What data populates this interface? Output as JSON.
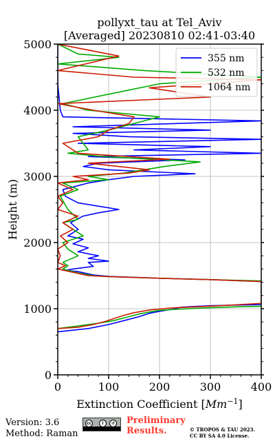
{
  "chart_data": {
    "type": "line",
    "title": "pollyxt_tau at Tel_Aviv",
    "subtitle": "[Averaged] 20230810 02:41-03:40",
    "xlabel": "Extinction Coefficient [Mm⁻¹]",
    "ylabel": "Height (m)",
    "xlim": [
      0,
      400
    ],
    "ylim": [
      0,
      5000
    ],
    "xticks": [
      0,
      100,
      200,
      300,
      400
    ],
    "yticks": [
      0,
      1000,
      2000,
      3000,
      4000,
      5000
    ],
    "grid": true,
    "legend_position": "top-right",
    "series": [
      {
        "name": "355 nm",
        "color": "#0000ff",
        "points": [
          [
            0,
            650
          ],
          [
            60,
            700
          ],
          [
            100,
            760
          ],
          [
            130,
            820
          ],
          [
            160,
            880
          ],
          [
            180,
            930
          ],
          [
            200,
            960
          ],
          [
            215,
            980
          ],
          [
            225,
            990
          ],
          [
            232,
            1000
          ],
          [
            240,
            1020
          ],
          [
            260,
            1030
          ],
          [
            300,
            1045
          ],
          [
            350,
            1055
          ],
          [
            400,
            1060
          ],
          [
            400,
            1410
          ],
          [
            300,
            1440
          ],
          [
            200,
            1460
          ],
          [
            100,
            1490
          ],
          [
            70,
            1510
          ],
          [
            40,
            1560
          ],
          [
            15,
            1580
          ],
          [
            30,
            1600
          ],
          [
            70,
            1640
          ],
          [
            60,
            1700
          ],
          [
            100,
            1720
          ],
          [
            60,
            1760
          ],
          [
            80,
            1800
          ],
          [
            40,
            1860
          ],
          [
            60,
            1920
          ],
          [
            30,
            1980
          ],
          [
            50,
            2050
          ],
          [
            20,
            2100
          ],
          [
            40,
            2200
          ],
          [
            25,
            2300
          ],
          [
            50,
            2400
          ],
          [
            80,
            2450
          ],
          [
            120,
            2500
          ],
          [
            80,
            2550
          ],
          [
            40,
            2600
          ],
          [
            15,
            2700
          ],
          [
            10,
            2800
          ],
          [
            60,
            2900
          ],
          [
            100,
            2950
          ],
          [
            150,
            3000
          ],
          [
            270,
            3040
          ],
          [
            100,
            3100
          ],
          [
            50,
            3150
          ],
          [
            80,
            3200
          ],
          [
            250,
            3250
          ],
          [
            60,
            3300
          ],
          [
            400,
            3350
          ],
          [
            150,
            3400
          ],
          [
            300,
            3450
          ],
          [
            40,
            3500
          ],
          [
            400,
            3560
          ],
          [
            140,
            3600
          ],
          [
            30,
            3650
          ],
          [
            300,
            3700
          ],
          [
            30,
            3750
          ],
          [
            400,
            3840
          ],
          [
            10,
            3900
          ],
          [
            5,
            4000
          ],
          [
            0,
            4400
          ],
          [
            0,
            5000
          ]
        ]
      },
      {
        "name": "532 nm",
        "color": "#00aa00",
        "points": [
          [
            0,
            700
          ],
          [
            40,
            740
          ],
          [
            80,
            780
          ],
          [
            110,
            820
          ],
          [
            140,
            880
          ],
          [
            160,
            920
          ],
          [
            180,
            950
          ],
          [
            200,
            975
          ],
          [
            230,
            990
          ],
          [
            270,
            1005
          ],
          [
            320,
            1020
          ],
          [
            360,
            1030
          ],
          [
            400,
            1035
          ],
          [
            400,
            1420
          ],
          [
            300,
            1440
          ],
          [
            200,
            1460
          ],
          [
            100,
            1485
          ],
          [
            70,
            1500
          ],
          [
            40,
            1540
          ],
          [
            10,
            1600
          ],
          [
            20,
            1650
          ],
          [
            10,
            1700
          ],
          [
            40,
            1800
          ],
          [
            20,
            1900
          ],
          [
            10,
            2000
          ],
          [
            50,
            2100
          ],
          [
            30,
            2200
          ],
          [
            10,
            2300
          ],
          [
            40,
            2350
          ],
          [
            20,
            2500
          ],
          [
            5,
            2700
          ],
          [
            40,
            2800
          ],
          [
            10,
            2900
          ],
          [
            100,
            2950
          ],
          [
            60,
            3000
          ],
          [
            130,
            3050
          ],
          [
            210,
            3150
          ],
          [
            280,
            3220
          ],
          [
            90,
            3300
          ],
          [
            20,
            3350
          ],
          [
            60,
            3400
          ],
          [
            40,
            3600
          ],
          [
            100,
            3700
          ],
          [
            200,
            3900
          ],
          [
            60,
            4000
          ],
          [
            10,
            4100
          ],
          [
            200,
            4400
          ],
          [
            400,
            4500
          ],
          [
            170,
            4600
          ],
          [
            0,
            4700
          ],
          [
            120,
            4800
          ],
          [
            40,
            4850
          ],
          [
            0,
            5000
          ]
        ]
      },
      {
        "name": "1064 nm",
        "color": "#cc1a00",
        "points": [
          [
            0,
            700
          ],
          [
            40,
            720
          ],
          [
            70,
            760
          ],
          [
            90,
            800
          ],
          [
            110,
            850
          ],
          [
            130,
            900
          ],
          [
            150,
            940
          ],
          [
            180,
            980
          ],
          [
            220,
            1010
          ],
          [
            280,
            1030
          ],
          [
            330,
            1050
          ],
          [
            400,
            1080
          ],
          [
            400,
            1410
          ],
          [
            300,
            1440
          ],
          [
            200,
            1460
          ],
          [
            100,
            1485
          ],
          [
            60,
            1500
          ],
          [
            30,
            1550
          ],
          [
            0,
            1600
          ],
          [
            15,
            1650
          ],
          [
            0,
            1700
          ],
          [
            5,
            1800
          ],
          [
            0,
            1900
          ],
          [
            20,
            2000
          ],
          [
            5,
            2100
          ],
          [
            30,
            2200
          ],
          [
            10,
            2300
          ],
          [
            40,
            2400
          ],
          [
            0,
            2500
          ],
          [
            10,
            2600
          ],
          [
            0,
            2700
          ],
          [
            30,
            2800
          ],
          [
            0,
            2900
          ],
          [
            60,
            2950
          ],
          [
            30,
            3000
          ],
          [
            140,
            3050
          ],
          [
            180,
            3100
          ],
          [
            60,
            3200
          ],
          [
            220,
            3260
          ],
          [
            40,
            3350
          ],
          [
            10,
            3500
          ],
          [
            80,
            3600
          ],
          [
            100,
            3700
          ],
          [
            140,
            3800
          ],
          [
            150,
            3900
          ],
          [
            70,
            4000
          ],
          [
            0,
            4100
          ],
          [
            300,
            4200
          ],
          [
            180,
            4340
          ],
          [
            400,
            4460
          ],
          [
            150,
            4500
          ],
          [
            0,
            4600
          ],
          [
            120,
            4820
          ],
          [
            0,
            5000
          ]
        ]
      }
    ]
  },
  "footer": {
    "version": "Version: 3.6",
    "method": "Method: Raman",
    "license_badge": [
      "cc",
      "by",
      "sa"
    ],
    "preliminary_line1": "Preliminary",
    "preliminary_line2": "Results.",
    "copyright_line1": "© TROPOS & TAU 2023.",
    "copyright_line2": "CC BY SA 4.0 License."
  }
}
